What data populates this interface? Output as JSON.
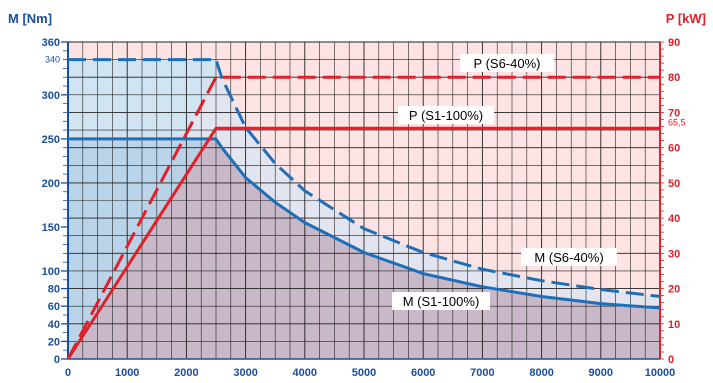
{
  "chart_data": {
    "type": "line",
    "left_axis_title": "M [Nm]",
    "right_axis_title": "P [kW]",
    "colors": {
      "torque": "#1f6fb8",
      "power": "#e0202a",
      "grid": "#1a1a1a"
    },
    "x_ticks": [
      "0",
      "1000",
      "2000",
      "3000",
      "4000",
      "5000",
      "6000",
      "7000",
      "8000",
      "9000",
      "10000"
    ],
    "left_ticks": [
      "0",
      "20",
      "40",
      "60",
      "80",
      "100",
      "150",
      "200",
      "250",
      "300",
      "360"
    ],
    "left_extra_tick": "340",
    "right_ticks": [
      "0",
      "10",
      "20",
      "30",
      "40",
      "50",
      "60",
      "70",
      "80",
      "90"
    ],
    "right_extra_tick": "65,5",
    "xlim": [
      0,
      10000
    ],
    "ylim_left": [
      0,
      360
    ],
    "ylim_right": [
      0,
      90
    ],
    "grid": true,
    "series": [
      {
        "name": "M (S6-40%)",
        "axis": "left",
        "style": "dashed",
        "x": [
          0,
          2500,
          2600,
          3000,
          3500,
          4000,
          5000,
          6000,
          7000,
          8000,
          9000,
          10000
        ],
        "y": [
          340,
          340,
          319,
          263,
          222,
          191,
          148,
          121,
          102,
          89,
          79,
          71
        ]
      },
      {
        "name": "M (S1-100%)",
        "axis": "left",
        "style": "solid",
        "x": [
          0,
          2500,
          2600,
          3000,
          3500,
          4000,
          5000,
          6000,
          7000,
          8000,
          9000,
          10000
        ],
        "y": [
          250,
          250,
          240,
          206,
          178,
          155,
          121,
          97,
          82,
          71,
          63,
          58
        ]
      },
      {
        "name": "P (S6-40%)",
        "axis": "right",
        "style": "dashed",
        "x": [
          0,
          2500,
          10000
        ],
        "y": [
          0,
          80,
          80
        ]
      },
      {
        "name": "P (S1-100%)",
        "axis": "right",
        "style": "solid",
        "x": [
          0,
          2500,
          10000
        ],
        "y": [
          0,
          65.5,
          65.5
        ]
      }
    ]
  }
}
